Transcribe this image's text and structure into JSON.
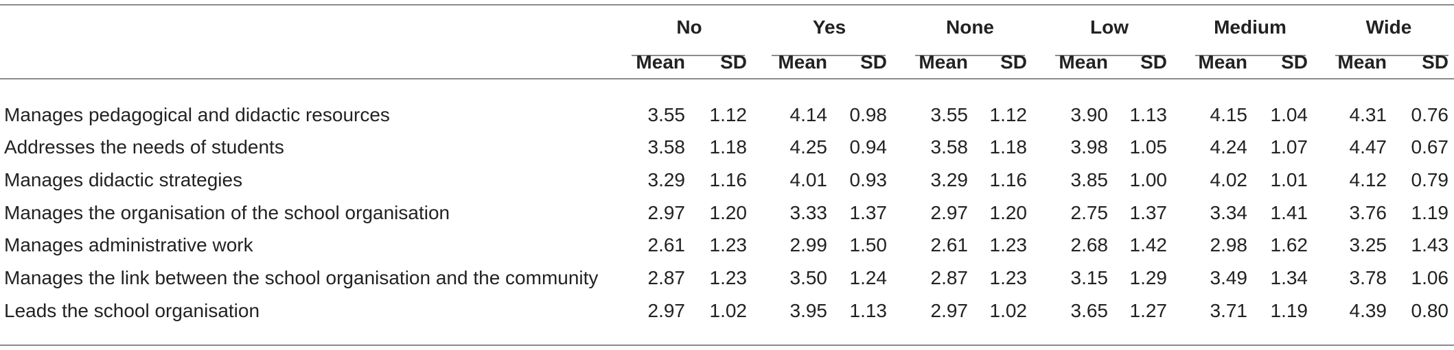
{
  "groups": [
    "No",
    "Yes",
    "None",
    "Low",
    "Medium",
    "Wide"
  ],
  "subheaders": [
    "Mean",
    "SD"
  ],
  "rows": [
    {
      "label": "Manages pedagogical and didactic resources",
      "values": [
        "3.55",
        "1.12",
        "4.14",
        "0.98",
        "3.55",
        "1.12",
        "3.90",
        "1.13",
        "4.15",
        "1.04",
        "4.31",
        "0.76"
      ]
    },
    {
      "label": "Addresses the needs of students",
      "values": [
        "3.58",
        "1.18",
        "4.25",
        "0.94",
        "3.58",
        "1.18",
        "3.98",
        "1.05",
        "4.24",
        "1.07",
        "4.47",
        "0.67"
      ]
    },
    {
      "label": "Manages didactic strategies",
      "values": [
        "3.29",
        "1.16",
        "4.01",
        "0.93",
        "3.29",
        "1.16",
        "3.85",
        "1.00",
        "4.02",
        "1.01",
        "4.12",
        "0.79"
      ]
    },
    {
      "label": "Manages the organisation of the school organisation",
      "values": [
        "2.97",
        "1.20",
        "3.33",
        "1.37",
        "2.97",
        "1.20",
        "2.75",
        "1.37",
        "3.34",
        "1.41",
        "3.76",
        "1.19"
      ]
    },
    {
      "label": "Manages administrative work",
      "values": [
        "2.61",
        "1.23",
        "2.99",
        "1.50",
        "2.61",
        "1.23",
        "2.68",
        "1.42",
        "2.98",
        "1.62",
        "3.25",
        "1.43"
      ]
    },
    {
      "label": "Manages the link between the school organisation and the community",
      "values": [
        "2.87",
        "1.23",
        "3.50",
        "1.24",
        "2.87",
        "1.23",
        "3.15",
        "1.29",
        "3.49",
        "1.34",
        "3.78",
        "1.06"
      ]
    },
    {
      "label": "Leads the school organisation",
      "values": [
        "2.97",
        "1.02",
        "3.95",
        "1.13",
        "2.97",
        "1.02",
        "3.65",
        "1.27",
        "3.71",
        "1.19",
        "4.39",
        "0.80"
      ]
    }
  ]
}
